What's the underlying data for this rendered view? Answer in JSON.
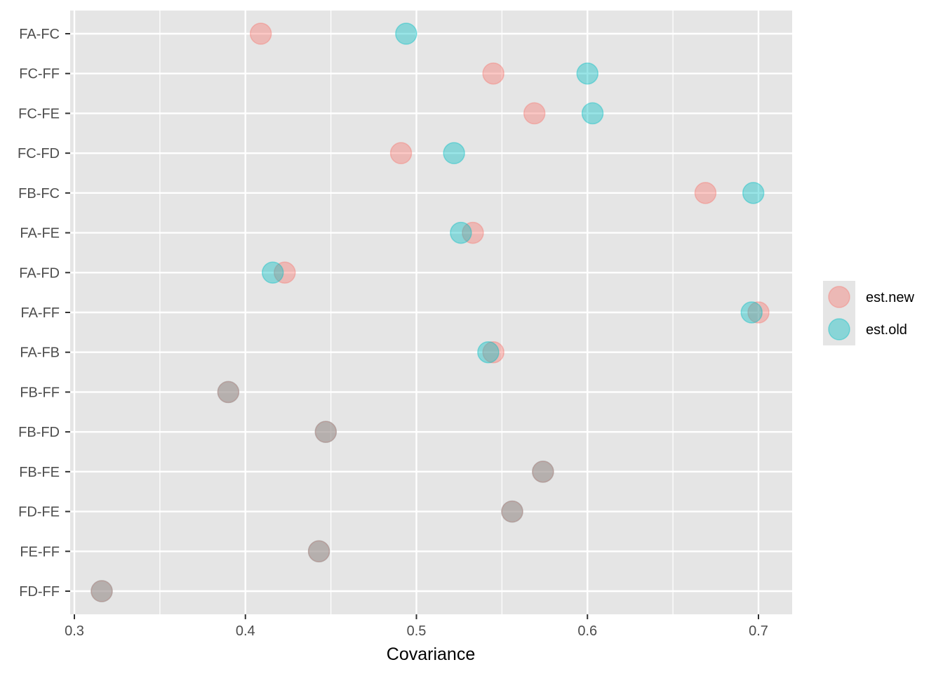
{
  "chart_data": {
    "type": "scatter",
    "title": "",
    "xlabel": "Covariance",
    "ylabel": "",
    "xlim": [
      0.3,
      0.72
    ],
    "x_ticks": [
      0.3,
      0.4,
      0.5,
      0.6,
      0.7
    ],
    "x_tick_labels": [
      "0.3",
      "0.4",
      "0.5",
      "0.6",
      "0.7"
    ],
    "categories": [
      "FA-FC",
      "FC-FF",
      "FC-FE",
      "FC-FD",
      "FB-FC",
      "FA-FE",
      "FA-FD",
      "FA-FF",
      "FA-FB",
      "FB-FF",
      "FB-FD",
      "FB-FE",
      "FD-FE",
      "FE-FF",
      "FD-FF"
    ],
    "grid": true,
    "legend_position": "right",
    "series": [
      {
        "name": "est.new",
        "color": "#F8766D",
        "values": [
          0.409,
          0.545,
          0.569,
          0.491,
          0.669,
          0.533,
          0.423,
          0.7,
          0.545,
          null,
          null,
          null,
          null,
          null,
          null
        ]
      },
      {
        "name": "est.old",
        "color": "#00BFC4",
        "values": [
          0.494,
          0.6,
          0.603,
          0.522,
          0.697,
          0.526,
          0.416,
          0.696,
          0.542,
          0.39,
          0.447,
          0.574,
          0.556,
          0.443,
          0.316
        ]
      },
      {
        "name": "est.new",
        "color": "#F8766D",
        "values": [
          null,
          null,
          null,
          null,
          null,
          null,
          null,
          null,
          null,
          0.39,
          0.447,
          0.574,
          0.556,
          0.443,
          0.316
        ]
      }
    ],
    "legend": [
      {
        "label": "est.new",
        "color": "#F8766D"
      },
      {
        "label": "est.old",
        "color": "#00BFC4"
      }
    ],
    "colors": {
      "panel_background": "#E5E5E5",
      "grid": "#FFFFFF",
      "axis_text": "#4D4D4D"
    }
  }
}
